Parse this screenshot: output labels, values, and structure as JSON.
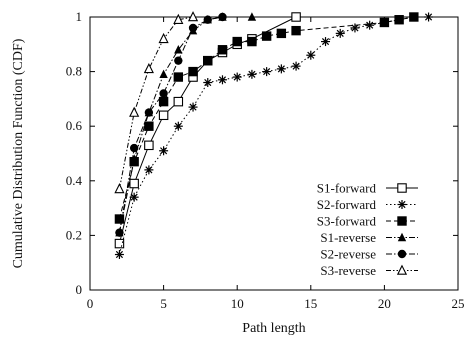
{
  "chart_data": {
    "type": "line",
    "xlabel": "Path length",
    "ylabel": "Cumulative Distribution Function (CDF)",
    "xlim": [
      0,
      25
    ],
    "ylim": [
      0,
      1
    ],
    "xticks": [
      0,
      5,
      10,
      15,
      20,
      25
    ],
    "yticks": [
      0,
      0.2,
      0.4,
      0.6,
      0.8,
      1
    ],
    "ytick_labels": [
      "0",
      "0.2",
      "0.4",
      "0.6",
      "0.8",
      "1"
    ],
    "grid": false,
    "legend_position": "bottom-right",
    "series": [
      {
        "name": "S1-forward",
        "marker": "open-square",
        "dash": "solid",
        "points": [
          [
            2,
            0.17
          ],
          [
            3,
            0.39
          ],
          [
            4,
            0.53
          ],
          [
            5,
            0.64
          ],
          [
            6,
            0.69
          ],
          [
            7,
            0.78
          ],
          [
            8,
            0.84
          ],
          [
            9,
            0.87
          ],
          [
            10,
            0.9
          ],
          [
            11,
            0.92
          ],
          [
            14,
            1.0
          ]
        ]
      },
      {
        "name": "S2-forward",
        "marker": "asterisk",
        "dash": "dotted",
        "points": [
          [
            2,
            0.13
          ],
          [
            3,
            0.34
          ],
          [
            4,
            0.44
          ],
          [
            5,
            0.51
          ],
          [
            6,
            0.6
          ],
          [
            7,
            0.67
          ],
          [
            8,
            0.76
          ],
          [
            9,
            0.77
          ],
          [
            10,
            0.78
          ],
          [
            11,
            0.79
          ],
          [
            12,
            0.8
          ],
          [
            13,
            0.81
          ],
          [
            14,
            0.82
          ],
          [
            15,
            0.86
          ],
          [
            16,
            0.91
          ],
          [
            17,
            0.94
          ],
          [
            18,
            0.96
          ],
          [
            19,
            0.97
          ],
          [
            20,
            0.98
          ],
          [
            21,
            0.99
          ],
          [
            22,
            1.0
          ],
          [
            23,
            1.0
          ]
        ]
      },
      {
        "name": "S3-forward",
        "marker": "filled-square",
        "dash": "dashed",
        "points": [
          [
            2,
            0.26
          ],
          [
            3,
            0.47
          ],
          [
            4,
            0.6
          ],
          [
            5,
            0.69
          ],
          [
            6,
            0.78
          ],
          [
            7,
            0.8
          ],
          [
            8,
            0.84
          ],
          [
            9,
            0.88
          ],
          [
            10,
            0.91
          ],
          [
            11,
            0.91
          ],
          [
            12,
            0.93
          ],
          [
            13,
            0.94
          ],
          [
            14,
            0.95
          ],
          [
            20,
            0.98
          ],
          [
            21,
            0.99
          ],
          [
            22,
            1.0
          ]
        ]
      },
      {
        "name": "S1-reverse",
        "marker": "filled-triangle",
        "dash": "dashdot",
        "points": [
          [
            2,
            0.21
          ],
          [
            3,
            0.48
          ],
          [
            4,
            0.65
          ],
          [
            5,
            0.79
          ],
          [
            6,
            0.88
          ],
          [
            7,
            0.95
          ],
          [
            8,
            0.99
          ],
          [
            9,
            1.0
          ],
          [
            11,
            1.0
          ]
        ]
      },
      {
        "name": "S2-reverse",
        "marker": "filled-circle",
        "dash": "dashdot",
        "points": [
          [
            2,
            0.21
          ],
          [
            3,
            0.52
          ],
          [
            4,
            0.65
          ],
          [
            5,
            0.72
          ],
          [
            6,
            0.84
          ],
          [
            7,
            0.96
          ],
          [
            8,
            0.99
          ],
          [
            9,
            1.0
          ]
        ]
      },
      {
        "name": "S3-reverse",
        "marker": "open-triangle",
        "dash": "dashdotdot",
        "points": [
          [
            2,
            0.37
          ],
          [
            3,
            0.65
          ],
          [
            4,
            0.81
          ],
          [
            5,
            0.92
          ],
          [
            6,
            0.99
          ],
          [
            7,
            1.0
          ]
        ]
      }
    ]
  }
}
